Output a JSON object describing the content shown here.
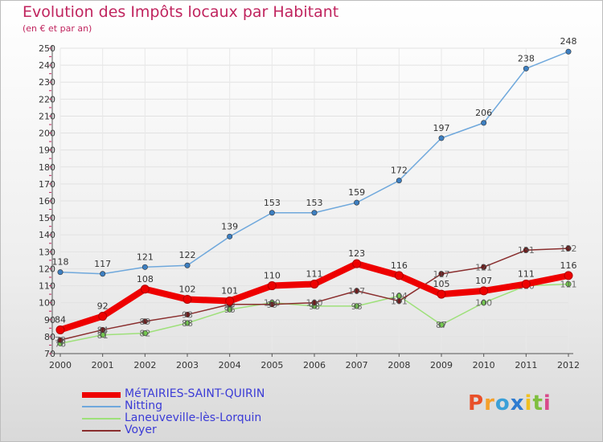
{
  "title": "Evolution des Impôts locaux par Habitant",
  "subtitle": "(en € et par an)",
  "logo": {
    "text": "Proxiti",
    "letter_colors": [
      "#e8502a",
      "#f4a02a",
      "#3aa0d8",
      "#2e7bd0",
      "#f0c020",
      "#7fbf3f",
      "#d84a8a"
    ]
  },
  "chart_data": {
    "type": "line",
    "title": "Evolution des Impôts locaux par Habitant",
    "subtitle": "(en € et par an)",
    "xlabel": "",
    "ylabel": "",
    "x": [
      "2000",
      "2001",
      "2002",
      "2003",
      "2004",
      "2005",
      "2006",
      "2007",
      "2008",
      "2009",
      "2010",
      "2011",
      "2012"
    ],
    "ylim": [
      70,
      250
    ],
    "yticks": [
      70,
      80,
      90,
      100,
      110,
      120,
      130,
      140,
      150,
      160,
      170,
      180,
      190,
      200,
      210,
      220,
      230,
      240,
      250
    ],
    "grid": true,
    "legend_position": "bottom-left",
    "series": [
      {
        "name": "Nitting",
        "color": "#6fa8dc",
        "marker": "#3d7fc1",
        "values": [
          118,
          117,
          121,
          122,
          139,
          153,
          153,
          159,
          172,
          197,
          206,
          238,
          248
        ],
        "labels": [
          "118",
          "117",
          "121",
          "122",
          "139",
          "153",
          "153",
          "159",
          "172",
          "197",
          "206",
          "238",
          "248"
        ]
      },
      {
        "name": "Laneuveville-lès-Lorquin",
        "color": "#9ee07a",
        "marker": "#74c94f",
        "values": [
          76,
          81,
          82,
          88,
          96,
          100,
          98,
          98,
          104,
          87,
          100,
          110,
          111
        ],
        "labels": [
          "76",
          "81",
          "82",
          "88",
          "96",
          "100",
          "98",
          "98",
          "104",
          "87",
          "100",
          "110",
          "111"
        ]
      },
      {
        "name": "Voyer",
        "color": "#8a2e2e",
        "marker": "#6e1c1c",
        "values": [
          78,
          84,
          89,
          93,
          99,
          99,
          100,
          107,
          101,
          117,
          121,
          131,
          132
        ],
        "labels": [
          "78",
          "84",
          "89",
          "93",
          "99",
          "99",
          "100",
          "107",
          "101",
          "117",
          "121",
          "131",
          "132"
        ]
      },
      {
        "name": "MéTAIRIES-SAINT-QUIRIN",
        "color": "#ee0000",
        "marker": "#ee0000",
        "values": [
          84,
          92,
          108,
          102,
          101,
          110,
          111,
          123,
          116,
          105,
          107,
          111,
          116
        ],
        "labels": [
          "84",
          "92",
          "108",
          "102",
          "101",
          "110",
          "111",
          "123",
          "116",
          "105",
          "107",
          "111",
          "116"
        ]
      }
    ],
    "legend": [
      "MéTAIRIES-SAINT-QUIRIN",
      "Nitting",
      "Laneuveville-lès-Lorquin",
      "Voyer"
    ]
  }
}
